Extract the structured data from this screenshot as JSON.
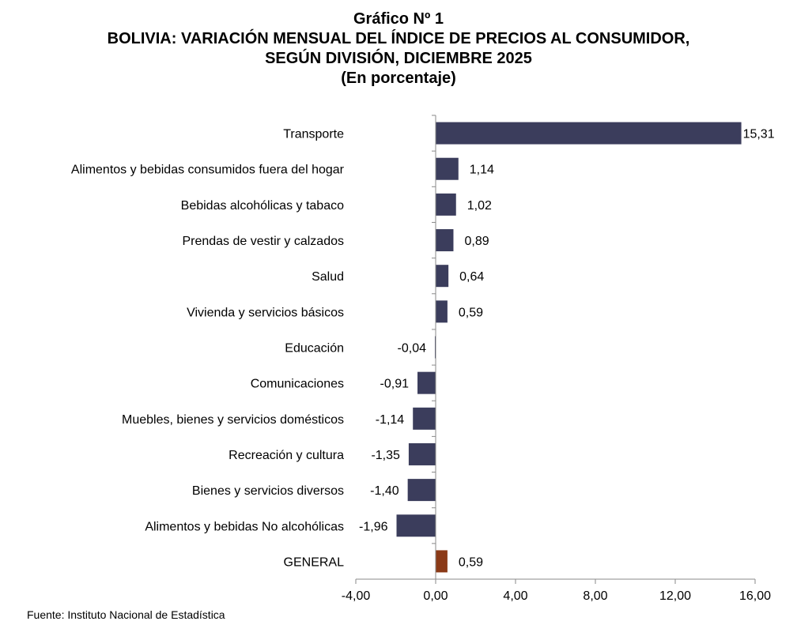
{
  "chart_data": {
    "type": "bar",
    "orientation": "horizontal",
    "title": "Gráfico Nº 1",
    "subtitle_lines": [
      "BOLIVIA: VARIACIÓN MENSUAL DEL ÍNDICE DE PRECIOS AL CONSUMIDOR,",
      "SEGÚN DIVISIÓN, DICIEMBRE 2025",
      "(En porcentaje)"
    ],
    "categories": [
      "Transporte",
      "Alimentos y bebidas consumidos fuera del hogar",
      "Bebidas alcohólicas y tabaco",
      "Prendas de vestir y calzados",
      "Salud",
      "Vivienda y servicios básicos",
      "Educación",
      "Comunicaciones",
      "Muebles, bienes y servicios domésticos",
      "Recreación y cultura",
      "Bienes y servicios diversos",
      "Alimentos y bebidas No alcohólicas",
      "GENERAL"
    ],
    "values": [
      15.31,
      1.14,
      1.02,
      0.89,
      0.64,
      0.59,
      -0.04,
      -0.91,
      -1.14,
      -1.35,
      -1.4,
      -1.96,
      0.59
    ],
    "value_labels": [
      "15,31",
      "1,14",
      "1,02",
      "0,89",
      "0,64",
      "0,59",
      "-0,04",
      "-0,91",
      "-1,14",
      "-1,35",
      "-1,40",
      "-1,96",
      "0,59"
    ],
    "xlim": [
      -4,
      16
    ],
    "xticks": [
      -4,
      0,
      4,
      8,
      12,
      16
    ],
    "xtick_labels": [
      "-4,00",
      "0,00",
      "4,00",
      "8,00",
      "12,00",
      "16,00"
    ],
    "xlabel": "",
    "ylabel": "",
    "grid": false,
    "colors": {
      "bar": "#3b3d5c",
      "highlight": "#8b3a17",
      "axis": "#8a8a8a"
    },
    "highlight_category": "GENERAL"
  },
  "footer": {
    "source": "Fuente: Instituto Nacional de Estadística"
  }
}
